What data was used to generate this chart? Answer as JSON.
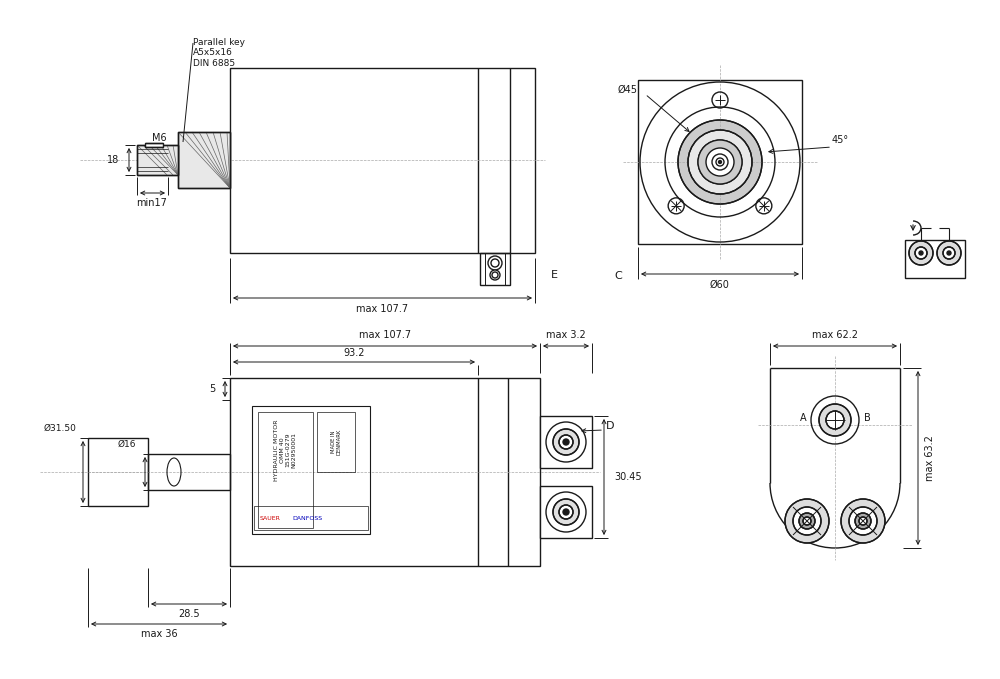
{
  "bg_color": "#ffffff",
  "line_color": "#1a1a1a",
  "dim_color": "#1a1a1a",
  "annotations": {
    "parallel_key": "Parallel key\nA5x5x16\nDIN 6885",
    "dim_18": "18",
    "dim_M6": "M6",
    "dim_min17": "min17",
    "dim_max107_7_top": "max 107.7",
    "dim_E": "E",
    "dim_C": "C",
    "dim_D45": "Ø45",
    "dim_60": "Ø60",
    "dim_45deg": "45°",
    "dim_max107_7_bot": "max 107.7",
    "dim_max3_2": "max 3.2",
    "dim_93_2": "93.2",
    "dim_D": "D",
    "dim_5": "5",
    "dim_31_50": "Ø31.50",
    "dim_16": "Ø16",
    "dim_30_45": "30.45",
    "dim_28_5": "28.5",
    "dim_max36": "max 36",
    "dim_max62_2": "max 62.2",
    "dim_A": "A",
    "dim_B": "B",
    "dim_63_2": "max 63.2",
    "label_hydraulic_1": "HYDRAULIC MOTOR",
    "label_hydraulic_2": "OMM 40",
    "label_hydraulic_3": "151G-0279",
    "label_hydraulic_4": "N02950001",
    "label_sauer": "SAUER",
    "label_danfoss": "DANFOSS",
    "label_made": "MADE IN DENMARK"
  }
}
